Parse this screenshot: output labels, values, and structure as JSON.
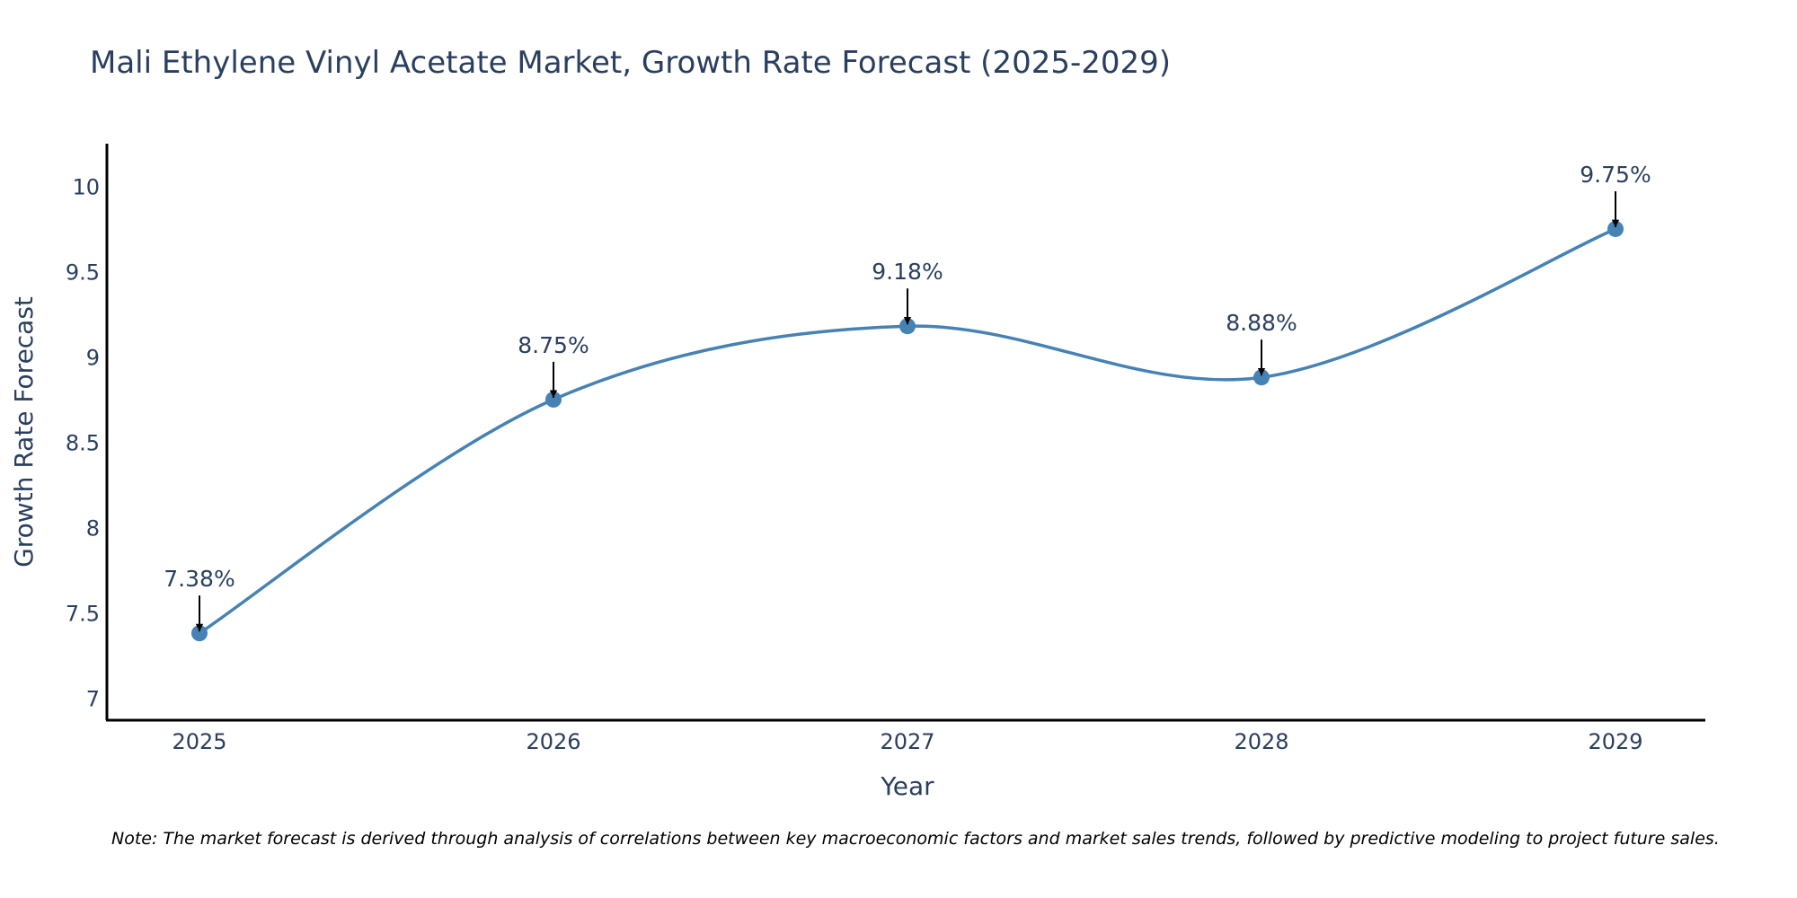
{
  "chart_data": {
    "type": "line",
    "title": "Mali Ethylene Vinyl Acetate Market, Growth Rate Forecast (2025-2029)",
    "xlabel": "Year",
    "ylabel": "Growth Rate Forecast",
    "categories": [
      "2025",
      "2026",
      "2027",
      "2028",
      "2029"
    ],
    "series": [
      {
        "name": "Growth Rate Forecast",
        "values": [
          7.38,
          8.75,
          9.18,
          8.88,
          9.75
        ],
        "labels": [
          "7.38%",
          "8.75%",
          "9.18%",
          "8.88%",
          "9.75%"
        ]
      }
    ],
    "ylim": [
      6.87,
      10.25
    ],
    "yticks": [
      7,
      7.5,
      8,
      8.5,
      9,
      9.5,
      10
    ],
    "ytick_labels": [
      "7",
      "7.5",
      "8",
      "8.5",
      "9",
      "9.5",
      "10"
    ],
    "line_color": "#4682b4",
    "marker_color": "#4682b4",
    "annotation_arrow_color": "#000000",
    "text_color": "#2a3f5f",
    "grid": false,
    "note": "Note: The market forecast is derived through analysis of correlations between key macroeconomic factors and market sales trends, followed by predictive modeling to project future sales."
  }
}
